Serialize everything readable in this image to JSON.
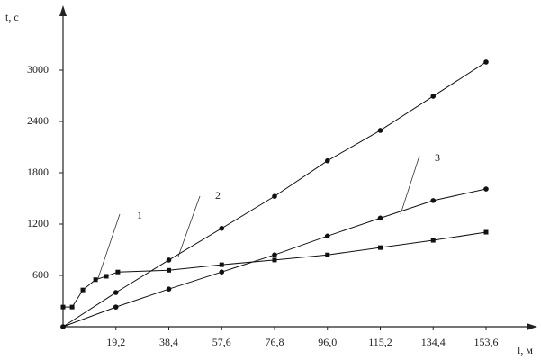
{
  "chart_data": {
    "type": "line",
    "y_label": "t, c",
    "x_label": "l, м",
    "xlim": [
      0,
      170
    ],
    "ylim": [
      0,
      3700
    ],
    "xticks": [
      {
        "value": 19.2,
        "label": "19,2"
      },
      {
        "value": 38.4,
        "label": "38,4"
      },
      {
        "value": 57.6,
        "label": "57,6"
      },
      {
        "value": 76.8,
        "label": "76,8"
      },
      {
        "value": 96.0,
        "label": "96,0"
      },
      {
        "value": 115.2,
        "label": "115,2"
      },
      {
        "value": 134.4,
        "label": "134,4"
      },
      {
        "value": 153.6,
        "label": "153,6"
      }
    ],
    "yticks": [
      600,
      1200,
      1800,
      2400,
      3000
    ],
    "grid": false,
    "series": [
      {
        "color": "#111111",
        "marker": "square",
        "x": [
          0,
          3.3,
          7.2,
          11.8,
          15.7,
          19.9,
          38.4,
          57.6,
          76.8,
          96.0,
          115.2,
          134.4,
          153.6
        ],
        "values": [
          230,
          230,
          430,
          550,
          590,
          640,
          660,
          725,
          780,
          840,
          925,
          1010,
          1105
        ]
      },
      {
        "color": "#111111",
        "marker": "circle",
        "x": [
          0,
          19.2,
          38.4,
          57.6,
          76.8,
          96.0,
          115.2,
          134.4,
          153.6
        ],
        "values": [
          0,
          400,
          780,
          1150,
          1525,
          1940,
          2295,
          2695,
          3095
        ]
      },
      {
        "color": "#111111",
        "marker": "circle",
        "x": [
          0,
          19.2,
          38.4,
          57.6,
          76.8,
          96.0,
          115.2,
          134.4,
          153.6
        ],
        "values": [
          0,
          230,
          440,
          640,
          840,
          1060,
          1270,
          1475,
          1610
        ]
      }
    ],
    "annotations": [
      "1",
      "2",
      "3"
    ]
  }
}
